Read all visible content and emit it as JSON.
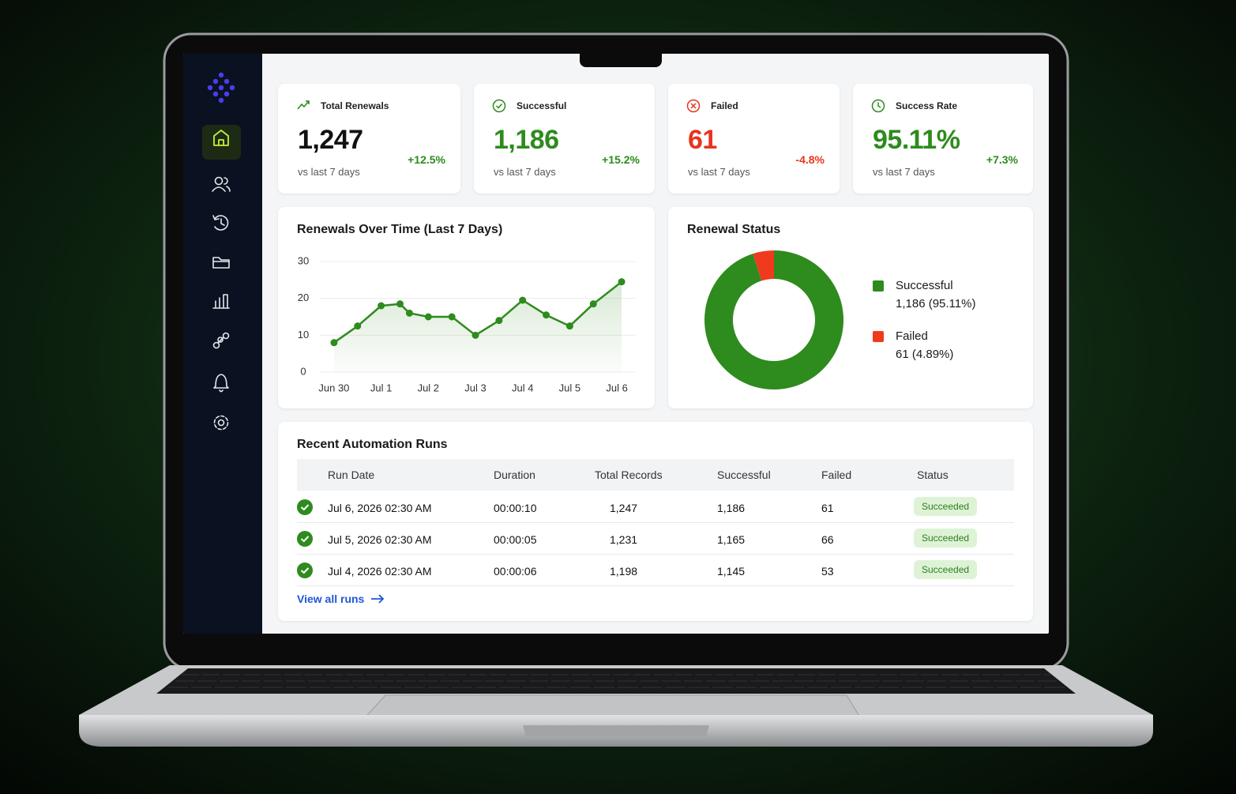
{
  "kpis": [
    {
      "label": "Total Renewals",
      "value": "1,247",
      "note": "vs last 7 days",
      "change": "+12.5%",
      "value_color": "#111111",
      "change_color": "#2e8b1e"
    },
    {
      "label": "Successful",
      "value": "1,186",
      "note": "vs last 7 days",
      "change": "+15.2%",
      "value_color": "#2e8b1e",
      "change_color": "#2e8b1e"
    },
    {
      "label": "Failed",
      "value": "61",
      "note": "vs last 7 days",
      "change": "-4.8%",
      "value_color": "#e8341f",
      "change_color": "#e8341f"
    },
    {
      "label": "Success Rate",
      "value": "95.11%",
      "note": "vs last 7 days",
      "change": "+7.3%",
      "value_color": "#2e8b1e",
      "change_color": "#2e8b1e"
    }
  ],
  "chart_data": [
    {
      "type": "line",
      "title": "Renewals Over Time (Last 7 Days)",
      "x": [
        0,
        0.5,
        1,
        1.4,
        1.6,
        2,
        2.5,
        3,
        3.5,
        4,
        4.5,
        5,
        5.5,
        6.1
      ],
      "values": [
        8,
        12.5,
        18,
        18.5,
        16,
        15,
        15,
        10,
        14,
        19.5,
        15.5,
        12.5,
        18.5,
        24.5
      ],
      "color": "#2e8b1e",
      "xlim": [
        -0.3,
        6.4
      ],
      "xticks": [
        {
          "value": 0,
          "label": "Jun 30"
        },
        {
          "value": 1,
          "label": "Jul 1"
        },
        {
          "value": 2,
          "label": "Jul 2"
        },
        {
          "value": 3,
          "label": "Jul 3"
        },
        {
          "value": 4,
          "label": "Jul 4"
        },
        {
          "value": 5,
          "label": "Jul 5"
        },
        {
          "value": 6,
          "label": "Jul 6"
        }
      ],
      "ylim": [
        0,
        30
      ],
      "yticks": [
        0,
        10,
        20,
        30
      ],
      "grid": true
    },
    {
      "type": "pie",
      "title": "Renewal Status",
      "categories": [
        "Successful",
        "Failed"
      ],
      "values": [
        1186,
        61
      ],
      "value_labels": [
        "1,186 (95.11%)",
        "61 (4.89%)"
      ],
      "colors": [
        "#2e8b1e",
        "#f03a1e"
      ]
    }
  ],
  "table": {
    "title": "Recent Automation Runs",
    "columns": [
      "Run Date",
      "Duration",
      "Total Records",
      "Successful",
      "Failed",
      "Status"
    ],
    "rows": [
      [
        "Jul 6, 2026 02:30 AM",
        "00:00:10",
        "1,247",
        "1,186",
        "61",
        "Succeeded"
      ],
      [
        "Jul 5, 2026 02:30 AM",
        "00:00:05",
        "1,231",
        "1,165",
        "66",
        "Succeeded"
      ],
      [
        "Jul 4, 2026 02:30 AM",
        "00:00:06",
        "1,198",
        "1,145",
        "53",
        "Succeeded"
      ]
    ]
  },
  "link": "View all runs"
}
